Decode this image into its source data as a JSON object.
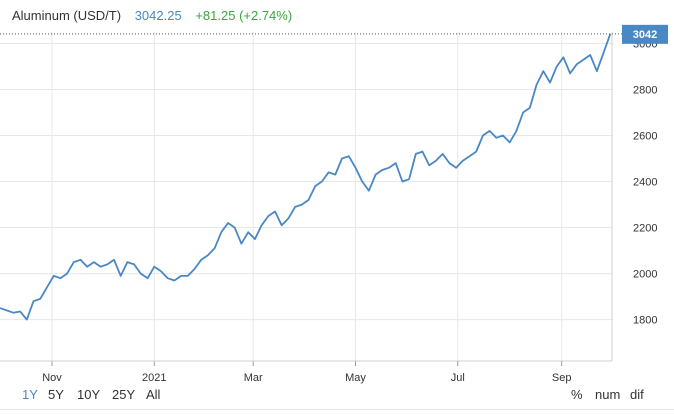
{
  "header": {
    "title": "Aluminum (USD/T)",
    "price": "3042.25",
    "change": "+81.25 (+2.74%)"
  },
  "colors": {
    "line": "#4a87c5",
    "badge": "#4a87c5",
    "positive": "#3aa53a",
    "grid": "#e7e7e7"
  },
  "last_badge": "3042",
  "range_buttons": [
    {
      "label": "1Y",
      "active": true
    },
    {
      "label": "5Y",
      "active": false
    },
    {
      "label": "10Y",
      "active": false
    },
    {
      "label": "25Y",
      "active": false
    },
    {
      "label": "All",
      "active": false
    }
  ],
  "mode_buttons": [
    "%",
    "num",
    "dif"
  ],
  "chart_data": {
    "type": "line",
    "title": "Aluminum (USD/T)",
    "ylim": [
      1620,
      3050
    ],
    "y_ticks": [
      1800,
      2000,
      2200,
      2400,
      2600,
      2800,
      3000
    ],
    "x_tick_labels": [
      "Nov",
      "2021",
      "Mar",
      "May",
      "Jul",
      "Sep"
    ],
    "x_tick_dates": [
      "2020-11-01",
      "2021-01-01",
      "2021-03-01",
      "2021-05-01",
      "2021-07-01",
      "2021-09-01"
    ],
    "xlim": [
      "2020-10-01",
      "2021-10-01"
    ],
    "grid": true,
    "legend": "none",
    "series": [
      {
        "x": [
          "2020-10-01",
          "2020-10-05",
          "2020-10-09",
          "2020-10-13",
          "2020-10-17",
          "2020-10-21",
          "2020-10-25",
          "2020-10-29",
          "2020-11-02",
          "2020-11-06",
          "2020-11-10",
          "2020-11-14",
          "2020-11-18",
          "2020-11-22",
          "2020-11-26",
          "2020-11-30",
          "2020-12-04",
          "2020-12-08",
          "2020-12-12",
          "2020-12-16",
          "2020-12-20",
          "2020-12-24",
          "2020-12-28",
          "2021-01-01",
          "2021-01-05",
          "2021-01-09",
          "2021-01-13",
          "2021-01-17",
          "2021-01-21",
          "2021-01-25",
          "2021-01-29",
          "2021-02-02",
          "2021-02-06",
          "2021-02-10",
          "2021-02-14",
          "2021-02-18",
          "2021-02-22",
          "2021-02-26",
          "2021-03-02",
          "2021-03-06",
          "2021-03-10",
          "2021-03-14",
          "2021-03-18",
          "2021-03-22",
          "2021-03-26",
          "2021-03-30",
          "2021-04-03",
          "2021-04-07",
          "2021-04-11",
          "2021-04-15",
          "2021-04-19",
          "2021-04-23",
          "2021-04-27",
          "2021-05-01",
          "2021-05-05",
          "2021-05-09",
          "2021-05-13",
          "2021-05-17",
          "2021-05-21",
          "2021-05-25",
          "2021-05-29",
          "2021-06-02",
          "2021-06-06",
          "2021-06-10",
          "2021-06-14",
          "2021-06-18",
          "2021-06-22",
          "2021-06-26",
          "2021-06-30",
          "2021-07-04",
          "2021-07-08",
          "2021-07-12",
          "2021-07-16",
          "2021-07-20",
          "2021-07-24",
          "2021-07-28",
          "2021-08-01",
          "2021-08-05",
          "2021-08-09",
          "2021-08-13",
          "2021-08-17",
          "2021-08-21",
          "2021-08-25",
          "2021-08-29",
          "2021-09-02",
          "2021-09-06",
          "2021-09-10",
          "2021-09-14",
          "2021-09-18",
          "2021-09-22",
          "2021-09-26",
          "2021-09-30"
        ],
        "y": [
          1850,
          1840,
          1830,
          1835,
          1800,
          1880,
          1890,
          1940,
          1990,
          1980,
          2000,
          2050,
          2060,
          2030,
          2050,
          2030,
          2040,
          2060,
          1990,
          2050,
          2040,
          2000,
          1980,
          2030,
          2010,
          1980,
          1970,
          1990,
          1990,
          2020,
          2060,
          2080,
          2110,
          2180,
          2220,
          2200,
          2130,
          2180,
          2150,
          2210,
          2250,
          2270,
          2210,
          2240,
          2290,
          2300,
          2320,
          2380,
          2400,
          2440,
          2430,
          2500,
          2510,
          2460,
          2400,
          2360,
          2430,
          2450,
          2460,
          2480,
          2400,
          2410,
          2520,
          2530,
          2470,
          2490,
          2520,
          2480,
          2460,
          2490,
          2510,
          2530,
          2600,
          2620,
          2590,
          2600,
          2570,
          2620,
          2700,
          2720,
          2820,
          2880,
          2830,
          2900,
          2940,
          2870,
          2910,
          2930,
          2950,
          2880,
          2960,
          3042
        ]
      }
    ]
  }
}
